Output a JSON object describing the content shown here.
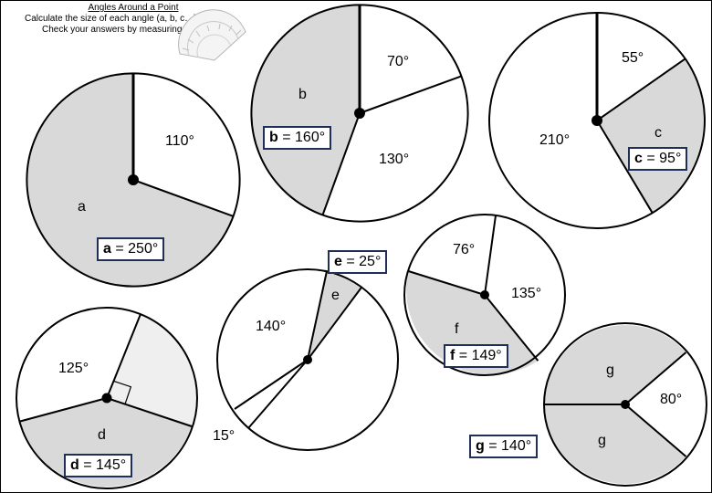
{
  "header": {
    "title": "Angles Around a Point",
    "line1": "Calculate the size of each angle (a, b, c…).",
    "line2": "Check your answers by measuring !"
  },
  "circles": {
    "a": {
      "given": "110°",
      "letter": "a",
      "answer_letter": "a",
      "answer_value": "= 250°"
    },
    "b": {
      "given1": "70°",
      "given2": "130°",
      "letter": "b",
      "answer_letter": "b",
      "answer_value": "= 160°"
    },
    "c": {
      "given1": "55°",
      "given2": "210°",
      "letter": "c",
      "answer_letter": "c",
      "answer_value": "= 95°"
    },
    "d": {
      "given": "125°",
      "letter": "d",
      "answer_letter": "d",
      "answer_value": "= 145°"
    },
    "e": {
      "given1": "140°",
      "given2": "15°",
      "letter": "e",
      "answer_letter": "e",
      "answer_value": "= 25°"
    },
    "f": {
      "given1": "76°",
      "given2": "135°",
      "letter": "f",
      "answer_letter": "f",
      "answer_value": "= 149°"
    },
    "g": {
      "given": "80°",
      "letter1": "g",
      "letter2": "g",
      "answer_letter": "g",
      "answer_value": "= 140°"
    }
  },
  "colors": {
    "shade": "#d9d9d9",
    "light_shade": "#efefef",
    "box_border": "#1f2f57"
  }
}
